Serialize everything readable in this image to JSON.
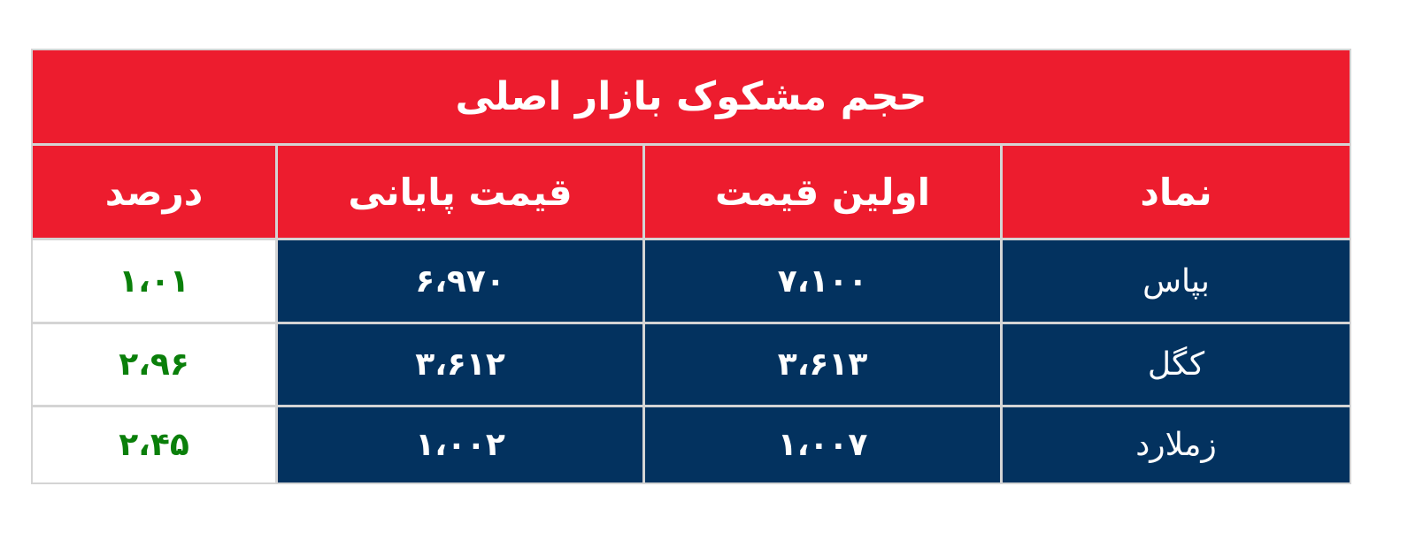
{
  "title": "حجم مشکوک بازار اصلی",
  "headers": {
    "symbol": "نماد",
    "first_price": "اولین قیمت",
    "final_price": "قیمت پایانی",
    "percent": "درصد"
  },
  "rows": [
    {
      "symbol": "بپاس",
      "first_price": "۷،۱۰۰",
      "final_price": "۶،۹۷۰",
      "percent": "۱،۰۱"
    },
    {
      "symbol": "کگل",
      "first_price": "۳،۶۱۳",
      "final_price": "۳،۶۱۲",
      "percent": "۲،۹۶"
    },
    {
      "symbol": "زملارد",
      "first_price": "۱،۰۰۷",
      "final_price": "۱،۰۰۲",
      "percent": "۲،۴۵"
    }
  ],
  "colors": {
    "header_red": "#ed1c2e",
    "cell_navy": "#03325f",
    "percent_green": "#0a7f0a"
  }
}
